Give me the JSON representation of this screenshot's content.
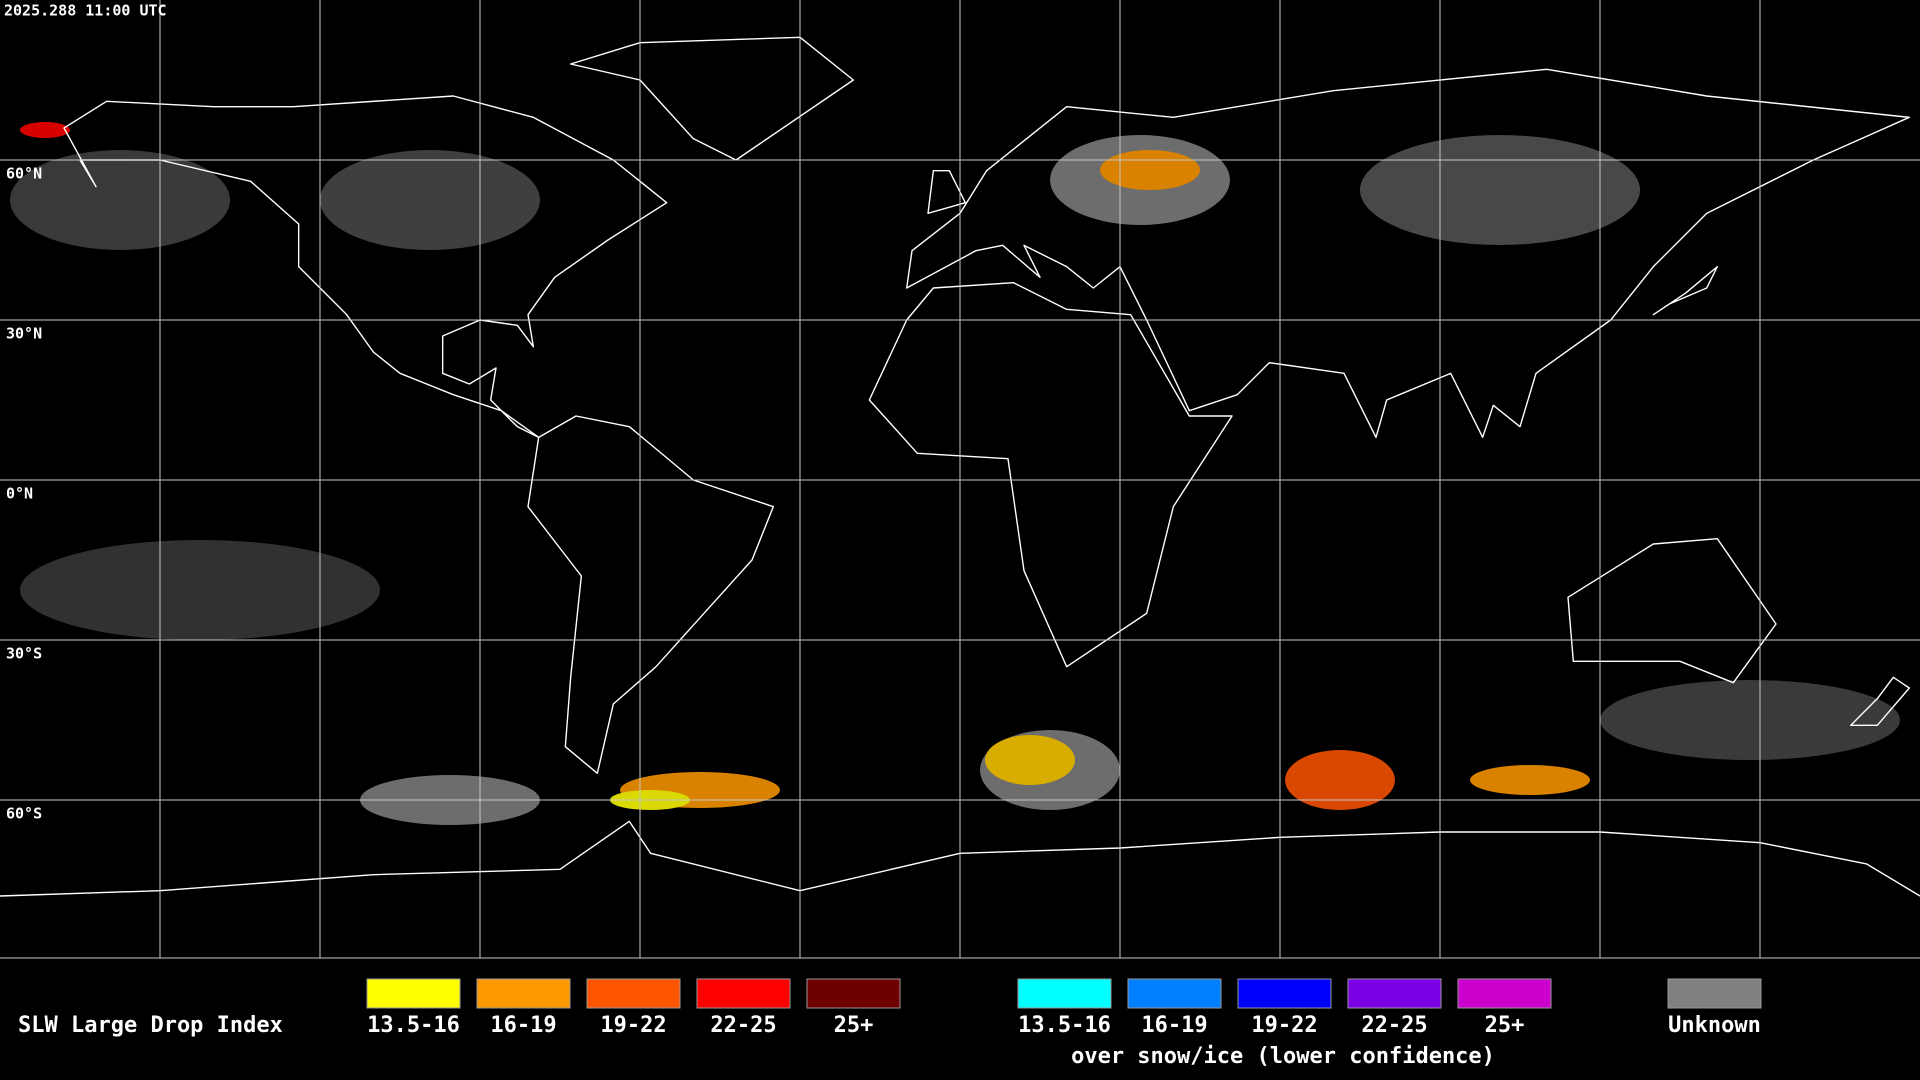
{
  "header": {
    "timestamp": "2025.288 11:00 UTC"
  },
  "map": {
    "latitude_labels": [
      "60°N",
      "30°N",
      "0°N",
      "30°S",
      "60°S"
    ]
  },
  "legend": {
    "title": "SLW Large Drop Index",
    "groups": [
      {
        "items": [
          {
            "label": "13.5-16",
            "color": "#ffff00"
          },
          {
            "label": "16-19",
            "color": "#ff9900"
          },
          {
            "label": "19-22",
            "color": "#ff5500"
          },
          {
            "label": "22-25",
            "color": "#ff0000"
          },
          {
            "label": "25+",
            "color": "#6e0000"
          }
        ]
      },
      {
        "note": "over snow/ice (lower confidence)",
        "items": [
          {
            "label": "13.5-16",
            "color": "#00ffff"
          },
          {
            "label": "16-19",
            "color": "#0080ff"
          },
          {
            "label": "19-22",
            "color": "#0000ff"
          },
          {
            "label": "22-25",
            "color": "#7a00e6"
          },
          {
            "label": "25+",
            "color": "#cc00cc"
          }
        ]
      }
    ],
    "unknown": {
      "label": "Unknown",
      "color": "#808080"
    }
  }
}
